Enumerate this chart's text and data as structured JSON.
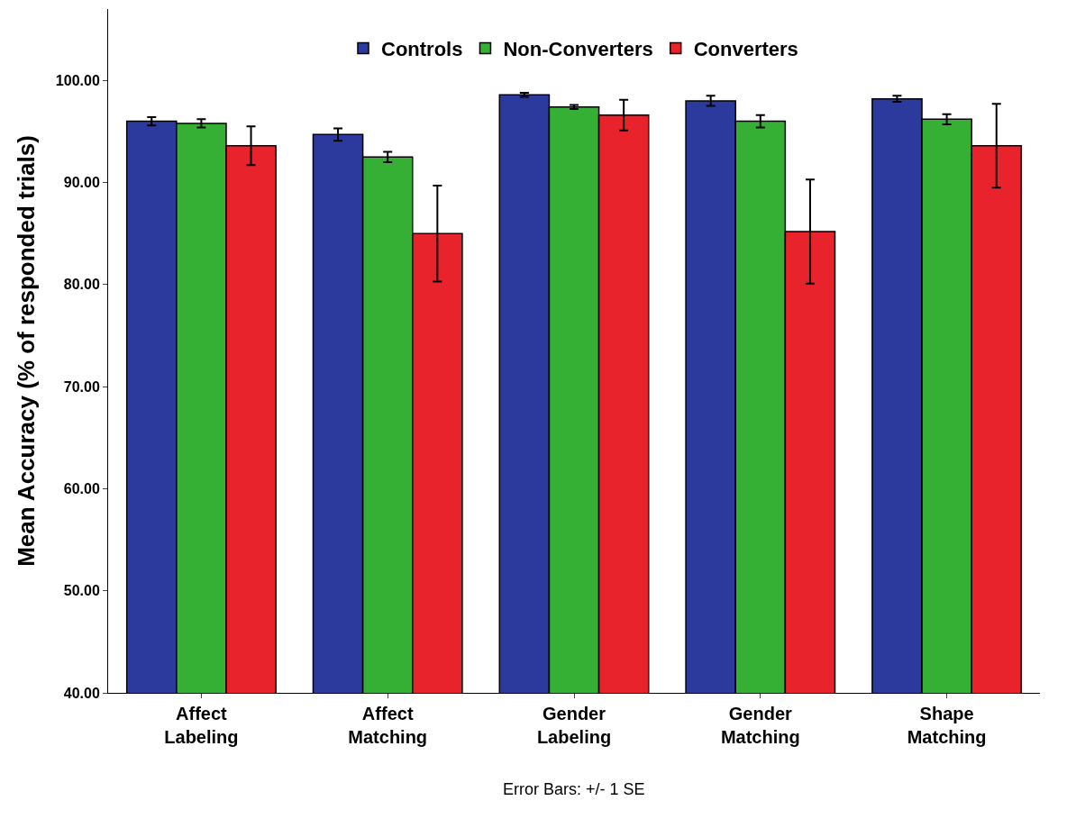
{
  "chart_data": {
    "type": "bar",
    "ylabel": "Mean Accuracy (% of responded trials)",
    "categories": [
      "Affect Labeling",
      "Affect Matching",
      "Gender Labeling",
      "Gender Matching",
      "Shape Matching"
    ],
    "series": [
      {
        "name": "Controls",
        "color": "#2b3a9c",
        "values": [
          96.0,
          94.7,
          98.6,
          98.0,
          98.2
        ],
        "errors": [
          0.4,
          0.6,
          0.2,
          0.5,
          0.3
        ]
      },
      {
        "name": "Non-Converters",
        "color": "#35b034",
        "values": [
          95.8,
          92.5,
          97.4,
          96.0,
          96.2
        ],
        "errors": [
          0.4,
          0.5,
          0.2,
          0.6,
          0.5
        ]
      },
      {
        "name": "Converters",
        "color": "#e8232b",
        "values": [
          93.6,
          85.0,
          96.6,
          85.2,
          93.6
        ],
        "errors": [
          1.9,
          4.7,
          1.5,
          5.1,
          4.1
        ]
      }
    ],
    "ylim": [
      40,
      107
    ],
    "yticks": [
      {
        "value": 40,
        "label": "40.00"
      },
      {
        "value": 50,
        "label": "50.00"
      },
      {
        "value": 60,
        "label": "60.00"
      },
      {
        "value": 70,
        "label": "70.00"
      },
      {
        "value": 80,
        "label": "80.00"
      },
      {
        "value": 90,
        "label": "90.00"
      },
      {
        "value": 100,
        "label": "100.00"
      }
    ],
    "annotations": [
      "Error Bars: +/- 1 SE"
    ],
    "legend": "top"
  }
}
